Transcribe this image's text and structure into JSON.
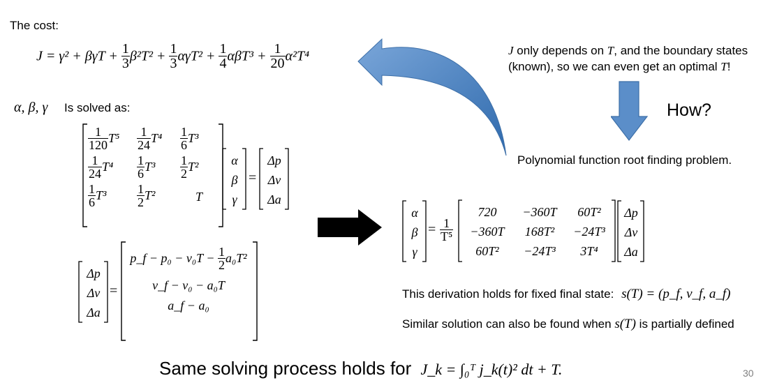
{
  "cost_label": "The cost:",
  "cost_equation": {
    "lhs": "J = γ² + βγT +",
    "terms": [
      {
        "num": "1",
        "den": "3",
        "body": "β²T² +"
      },
      {
        "num": "1",
        "den": "3",
        "body": "αγT² +"
      },
      {
        "num": "1",
        "den": "4",
        "body": "αβT³ +"
      },
      {
        "num": "1",
        "den": "20",
        "body": "α²T⁴"
      }
    ]
  },
  "solved_vars": "α, β, γ",
  "solved_label": "Is solved as:",
  "matrix_A": [
    [
      {
        "num": "1",
        "den": "120",
        "t": "T⁵"
      },
      {
        "num": "1",
        "den": "24",
        "t": "T⁴"
      },
      {
        "num": "1",
        "den": "6",
        "t": "T³"
      }
    ],
    [
      {
        "num": "1",
        "den": "24",
        "t": "T⁴"
      },
      {
        "num": "1",
        "den": "6",
        "t": "T³"
      },
      {
        "num": "1",
        "den": "2",
        "t": "T²"
      }
    ],
    [
      {
        "num": "1",
        "den": "6",
        "t": "T³"
      },
      {
        "num": "1",
        "den": "2",
        "t": "T²"
      },
      {
        "num": "",
        "den": "",
        "t": "T"
      }
    ]
  ],
  "unknowns": [
    "α",
    "β",
    "γ"
  ],
  "deltas": [
    "Δp",
    "Δv",
    "Δa"
  ],
  "delta_def": {
    "row1_a": "p_f − p₀ − v₀T −",
    "row1_frac": {
      "num": "1",
      "den": "2"
    },
    "row1_b": "a₀T²",
    "row2": "v_f − v₀ − a₀T",
    "row3": "a_f − a₀"
  },
  "note_top": {
    "J": "J",
    "line1": "only depends on",
    "T1": "T",
    "line1b": ", and the boundary states",
    "line2": "(known), so we can even get an optimal",
    "T2": "T",
    "line2b": "!"
  },
  "how": "How?",
  "root_finding": "Polynomial function root finding problem.",
  "solution": {
    "scale_num": "1",
    "scale_den": "T⁵",
    "M": [
      [
        "720",
        "−360T",
        "60T²"
      ],
      [
        "−360T",
        "168T²",
        "−24T³"
      ],
      [
        "60T²",
        "−24T³",
        "3T⁴"
      ]
    ]
  },
  "derivation_note": "This derivation holds for fixed final state:",
  "derivation_math": "s(T) = (p_f, v_f, a_f)",
  "similar_note_a": "Similar solution can also be found when",
  "similar_math": "s(T)",
  "similar_note_b": "is partially defined",
  "bottom_text": "Same solving process holds for",
  "bottom_math": "J_k = ∫₀ᵀ j_k(t)² dt + T.",
  "page_number": "30",
  "colors": {
    "arrow_blue": "#5b8ec9",
    "arrow_dark": "#000000",
    "page_number": "#7f7f7f"
  }
}
